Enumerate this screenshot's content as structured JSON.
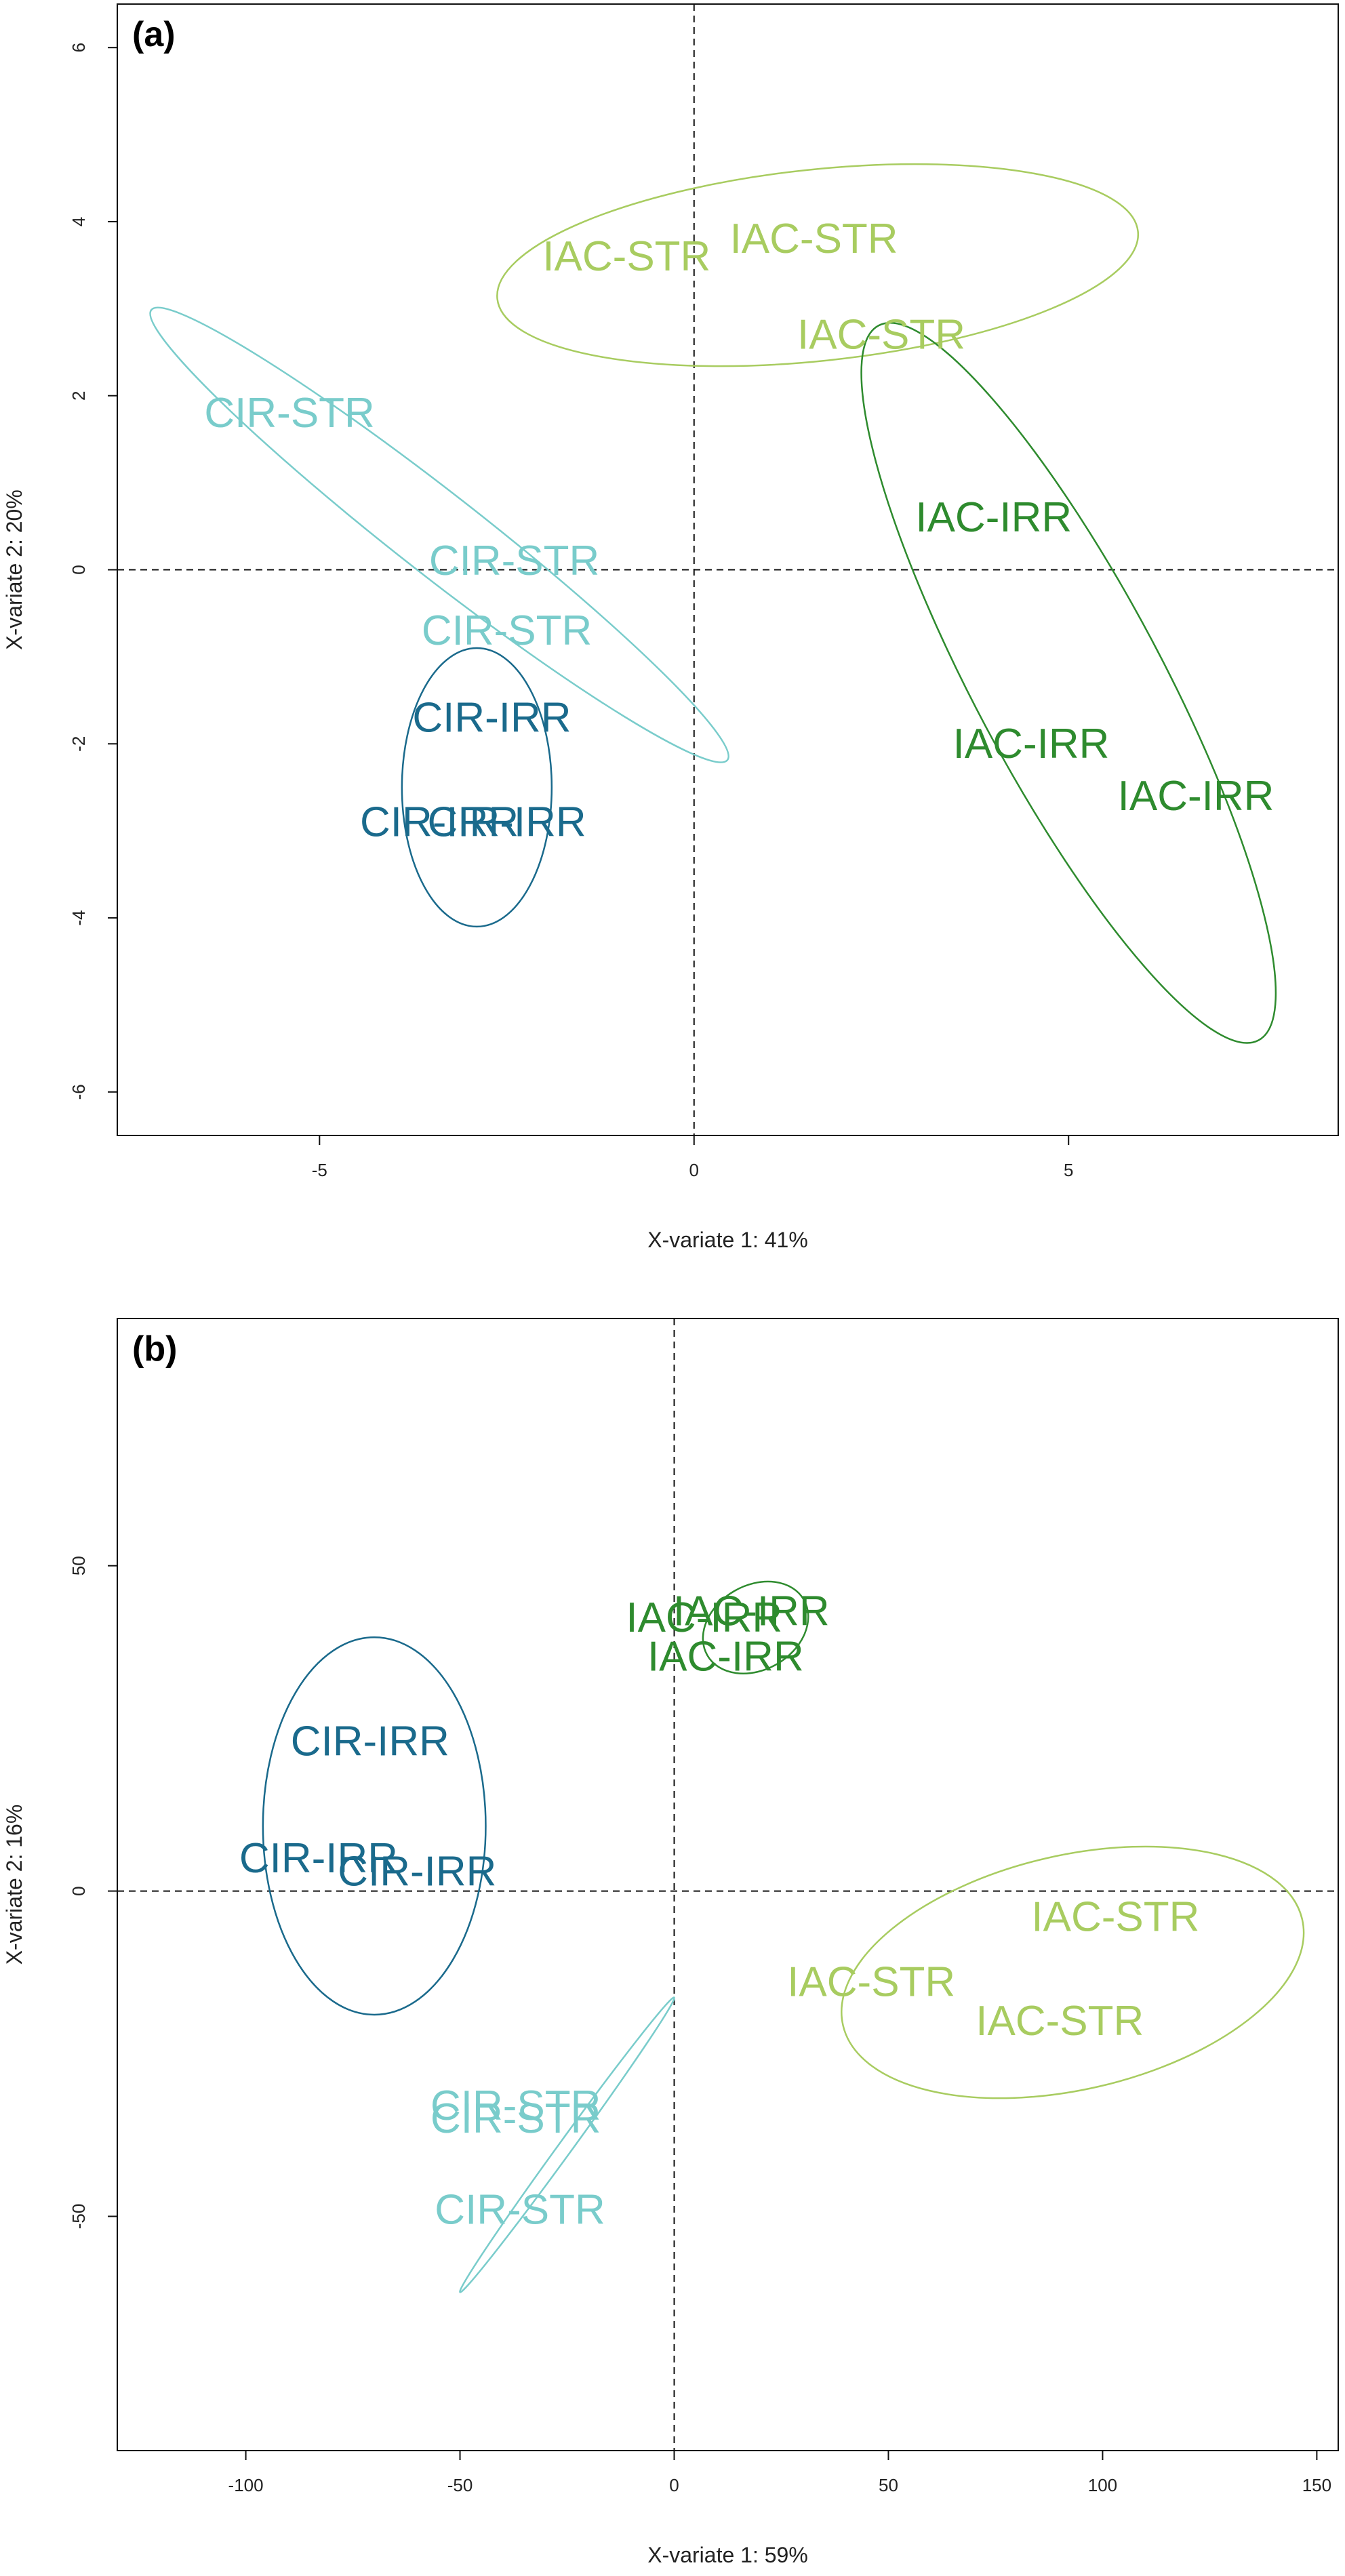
{
  "chart_data": [
    {
      "type": "scatter",
      "panel_label": "(a)",
      "xlabel": "X-variate 1: 41%",
      "ylabel": "X-variate 2: 20%",
      "xlim": [
        -7.7,
        8.6
      ],
      "ylim": [
        -6.5,
        6.5
      ],
      "xticks": [
        -5,
        0,
        5
      ],
      "yticks": [
        -6,
        -4,
        -2,
        0,
        2,
        4,
        6
      ],
      "reference_lines": {
        "x": 0,
        "y": 0
      },
      "groups": {
        "CIR-IRR": "#1a6a8c",
        "CIR-STR": "#79cccb",
        "IAC-IRR": "#2e8b2e",
        "IAC-STR": "#a8cc60"
      },
      "points": [
        {
          "label": "CIR-IRR",
          "x": -2.7,
          "y": -1.7
        },
        {
          "label": "CIR-IRR",
          "x": -3.4,
          "y": -2.9
        },
        {
          "label": "CIR-IRR",
          "x": -2.5,
          "y": -2.9
        },
        {
          "label": "CIR-STR",
          "x": -5.4,
          "y": 1.8
        },
        {
          "label": "CIR-STR",
          "x": -2.4,
          "y": 0.1
        },
        {
          "label": "CIR-STR",
          "x": -2.5,
          "y": -0.7
        },
        {
          "label": "IAC-STR",
          "x": -0.9,
          "y": 3.6
        },
        {
          "label": "IAC-STR",
          "x": 1.6,
          "y": 3.8
        },
        {
          "label": "IAC-STR",
          "x": 2.5,
          "y": 2.7
        },
        {
          "label": "IAC-IRR",
          "x": 4.0,
          "y": 0.6
        },
        {
          "label": "IAC-IRR",
          "x": 4.5,
          "y": -2.0
        },
        {
          "label": "IAC-IRR",
          "x": 6.7,
          "y": -2.6
        }
      ],
      "ellipses": [
        {
          "group": "CIR-IRR",
          "cx": -2.9,
          "cy": -2.5,
          "rx": 1.0,
          "ry": 1.6,
          "angle": 0
        },
        {
          "group": "CIR-STR",
          "cx": -3.4,
          "cy": 0.4,
          "rx": 0.55,
          "ry": 4.2,
          "angle": -52
        },
        {
          "group": "IAC-STR",
          "cx": 1.65,
          "cy": 3.5,
          "rx": 4.3,
          "ry": 1.1,
          "angle": -6
        },
        {
          "group": "IAC-IRR",
          "cx": 5.0,
          "cy": -1.3,
          "rx": 1.25,
          "ry": 4.65,
          "angle": -28
        }
      ]
    },
    {
      "type": "scatter",
      "panel_label": "(b)",
      "xlabel": "X-variate 1: 59%",
      "ylabel": "X-variate 2: 16%",
      "xlim": [
        -130,
        155
      ],
      "ylim": [
        -86,
        88
      ],
      "xticks": [
        -100,
        -50,
        0,
        50,
        100,
        150
      ],
      "yticks": [
        -50,
        0,
        50
      ],
      "reference_lines": {
        "x": 0,
        "y": 0
      },
      "groups": {
        "CIR-IRR": "#1a6a8c",
        "CIR-STR": "#79cccb",
        "IAC-IRR": "#2e8b2e",
        "IAC-STR": "#a8cc60"
      },
      "points": [
        {
          "label": "CIR-IRR",
          "x": -71,
          "y": 23
        },
        {
          "label": "CIR-IRR",
          "x": -83,
          "y": 5
        },
        {
          "label": "CIR-IRR",
          "x": -60,
          "y": 3
        },
        {
          "label": "CIR-STR",
          "x": -37,
          "y": -33
        },
        {
          "label": "CIR-STR",
          "x": -37,
          "y": -35
        },
        {
          "label": "CIR-STR",
          "x": -36,
          "y": -49
        },
        {
          "label": "IAC-IRR",
          "x": 7,
          "y": 42
        },
        {
          "label": "IAC-IRR",
          "x": 18,
          "y": 43
        },
        {
          "label": "IAC-IRR",
          "x": 12,
          "y": 36
        },
        {
          "label": "IAC-STR",
          "x": 103,
          "y": -4
        },
        {
          "label": "IAC-STR",
          "x": 46,
          "y": -14
        },
        {
          "label": "IAC-STR",
          "x": 90,
          "y": -20
        }
      ],
      "ellipses": [
        {
          "group": "CIR-IRR",
          "cx": -70,
          "cy": 10,
          "rx": 26,
          "ry": 29,
          "angle": 0
        },
        {
          "group": "CIR-STR",
          "cx": -25,
          "cy": -39,
          "rx": 1.6,
          "ry": 28,
          "angle": 36
        },
        {
          "group": "IAC-IRR",
          "cx": 19,
          "cy": 40.5,
          "rx": 13,
          "ry": 6.5,
          "angle": -30
        },
        {
          "group": "IAC-STR",
          "cx": 93,
          "cy": -12.5,
          "rx": 55,
          "ry": 18,
          "angle": -13
        }
      ]
    }
  ]
}
